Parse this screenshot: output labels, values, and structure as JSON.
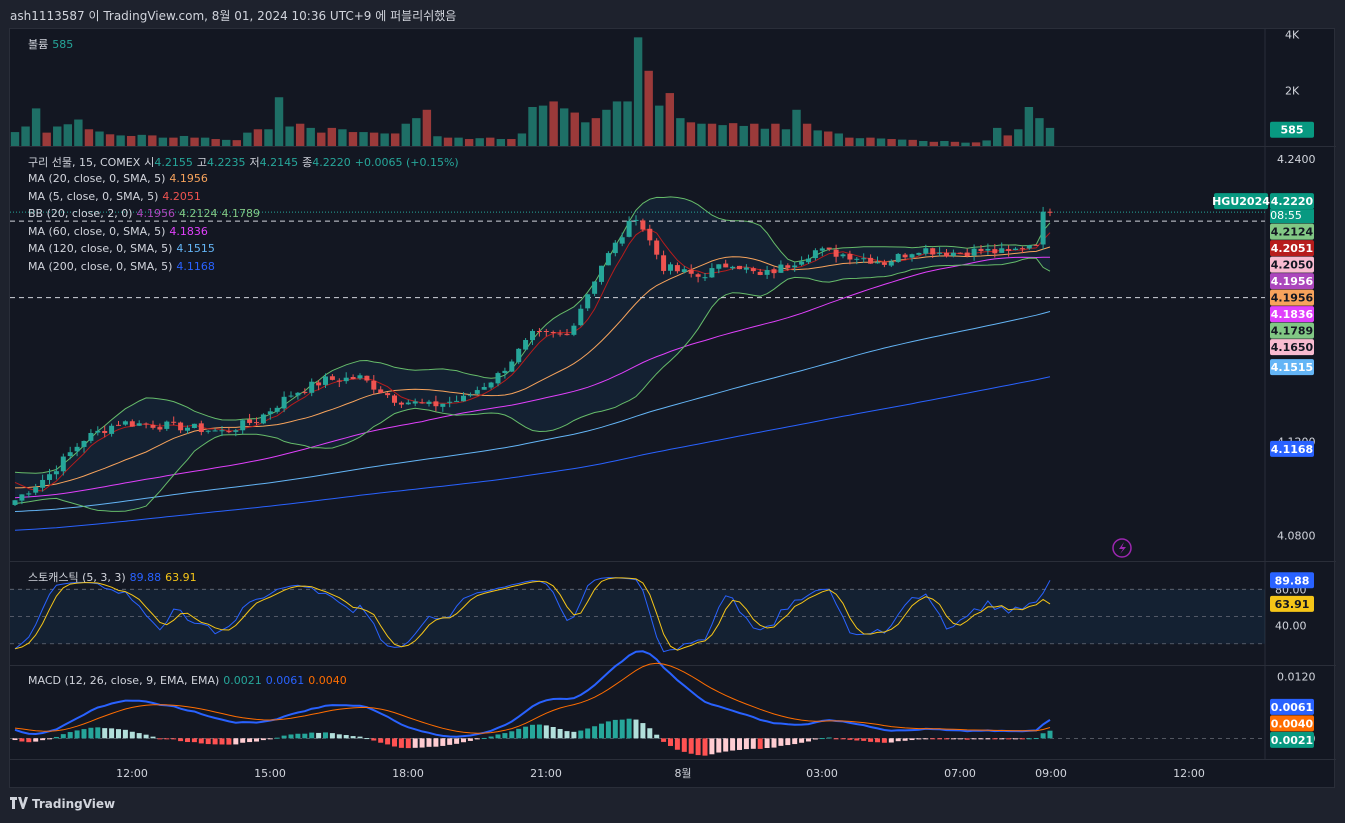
{
  "header": {
    "text": "ash1113587 이 TradingView.com, 8월 01, 2024 10:36 UTC+9 에 퍼블리쉬했음"
  },
  "footer": {
    "brand": "TradingView"
  },
  "colors": {
    "bg": "#131722",
    "up": "#26a69a",
    "down": "#ef5350",
    "ma20": "#f7a35c",
    "ma5": "#ef5350",
    "bbmid": "#ab47bc",
    "bbup": "#66bb6a",
    "bbdn": "#66bb6a",
    "ma60": "#e040fb",
    "ma120": "#64b5f6",
    "ma200": "#2962ff",
    "stochK": "#2962ff",
    "stochD": "#f5c518",
    "macd": "#2962ff",
    "signal": "#ff6d00"
  },
  "legends": {
    "volume": {
      "label": "볼륨",
      "value": "585"
    },
    "main": {
      "title": "구리 선물, 15, COMEX",
      "o_label": "시",
      "o": "4.2155",
      "h_label": "고",
      "h": "4.2235",
      "l_label": "저",
      "l": "4.2145",
      "c_label": "종",
      "c": "4.2220",
      "chg": "+0.0065 (+0.15%)"
    },
    "ma20": {
      "label": "MA (20, close, 0, SMA, 5)",
      "value": "4.1956"
    },
    "ma5": {
      "label": "MA (5, close, 0, SMA, 5)",
      "value": "4.2051"
    },
    "bb": {
      "label": "BB (20, close, 2, 0)",
      "v1": "4.1956",
      "v2": "4.2124",
      "v3": "4.1789"
    },
    "ma60": {
      "label": "MA (60, close, 0, SMA, 5)",
      "value": "4.1836"
    },
    "ma120": {
      "label": "MA (120, close, 0, SMA, 5)",
      "value": "4.1515"
    },
    "ma200": {
      "label": "MA (200, close, 0, SMA, 5)",
      "value": "4.1168"
    },
    "stoch": {
      "label": "스토캐스틱 (5, 3, 3)",
      "k": "89.88",
      "d": "63.91"
    },
    "macd": {
      "label": "MACD (12, 26, close, 9, EMA, EMA)",
      "hist": "0.0021",
      "macd": "0.0061",
      "signal": "0.0040"
    }
  },
  "chart_data": {
    "type": "candlestick",
    "symbol": "HGU2024",
    "x_ticks": [
      "12:00",
      "15:00",
      "18:00",
      "21:00",
      "8월",
      "03:00",
      "07:00",
      "09:00",
      "12:00"
    ],
    "price_axis": {
      "ticks": [
        "4.2400",
        "4.1200",
        "4.0800"
      ],
      "ylim": [
        4.07,
        4.245
      ]
    },
    "volume_axis": {
      "ticks": [
        "4K",
        "2K"
      ],
      "ylim": [
        0,
        4200
      ]
    },
    "stoch_axis": {
      "ticks": [
        "80.00",
        "40.00"
      ],
      "ylim": [
        0,
        110
      ]
    },
    "macd_axis": {
      "ticks": [
        "0.0120",
        "0.0000"
      ],
      "ylim": [
        -0.004,
        0.014
      ]
    },
    "countdown": "08:55",
    "hlines": [
      4.2135,
      4.181
    ],
    "badges": [
      {
        "text": "HGU2024",
        "color": "#089981",
        "price": 4.222
      },
      {
        "text": "4.2220",
        "color": "#089981",
        "price": 4.222
      },
      {
        "text": "4.2124",
        "color": "#81c784",
        "price": 4.2124
      },
      {
        "text": "4.2051",
        "color": "#b71c1c",
        "price": 4.2051
      },
      {
        "text": "4.2050",
        "color": "#f8bbd0",
        "price": 4.205
      },
      {
        "text": "4.1956",
        "color": "#ab47bc",
        "price": 4.1956
      },
      {
        "text": "4.1956",
        "color": "#f7a35c",
        "price": 4.1956
      },
      {
        "text": "4.1836",
        "color": "#e040fb",
        "price": 4.1836
      },
      {
        "text": "4.1789",
        "color": "#81c784",
        "price": 4.1789
      },
      {
        "text": "4.1650",
        "color": "#f8bbd0",
        "price": 4.165
      },
      {
        "text": "4.1515",
        "color": "#64b5f6",
        "price": 4.1515
      },
      {
        "text": "4.1168",
        "color": "#2962ff",
        "price": 4.1168
      },
      {
        "text": "585",
        "color": "#089981",
        "vol": 585
      },
      {
        "text": "89.88",
        "color": "#2962ff",
        "stoch": 89.88
      },
      {
        "text": "63.91",
        "color": "#f5c518",
        "stoch": 63.91
      },
      {
        "text": "0.0061",
        "color": "#2962ff",
        "macd": 0.0061
      },
      {
        "text": "0.0040",
        "color": "#ff6d00",
        "macd": 0.004
      },
      {
        "text": "0.0021",
        "color": "#089981",
        "macd": 0.0021
      }
    ],
    "keypoints": [
      [
        0,
        4.095
      ],
      [
        5,
        4.106
      ],
      [
        10,
        4.121
      ],
      [
        15,
        4.128
      ],
      [
        20,
        4.127
      ],
      [
        25,
        4.126
      ],
      [
        30,
        4.124
      ],
      [
        35,
        4.129
      ],
      [
        40,
        4.14
      ],
      [
        45,
        4.146
      ],
      [
        50,
        4.147
      ],
      [
        55,
        4.138
      ],
      [
        60,
        4.135
      ],
      [
        65,
        4.138
      ],
      [
        70,
        4.148
      ],
      [
        75,
        4.165
      ],
      [
        80,
        4.165
      ],
      [
        85,
        4.195
      ],
      [
        90,
        4.216
      ],
      [
        94,
        4.194
      ],
      [
        99,
        4.19
      ],
      [
        104,
        4.196
      ],
      [
        108,
        4.19
      ],
      [
        112,
        4.195
      ],
      [
        116,
        4.201
      ],
      [
        121,
        4.199
      ],
      [
        126,
        4.196
      ],
      [
        131,
        4.202
      ],
      [
        135,
        4.2
      ],
      [
        140,
        4.201
      ],
      [
        144,
        4.2
      ],
      [
        148,
        4.205
      ],
      [
        149,
        4.216
      ],
      [
        151,
        4.222
      ]
    ],
    "volume": [
      500,
      700,
      1350,
      480,
      700,
      780,
      950,
      600,
      520,
      420,
      380,
      360,
      400,
      380,
      300,
      300,
      360,
      300,
      300,
      250,
      220,
      210,
      480,
      600,
      600,
      1750,
      700,
      800,
      650,
      480,
      650,
      600,
      500,
      500,
      480,
      450,
      450,
      800,
      1000,
      1300,
      350,
      300,
      300,
      250,
      280,
      300,
      250,
      250,
      450,
      1400,
      1450,
      1600,
      1350,
      1200,
      850,
      1000,
      1300,
      1600,
      1600,
      3900,
      2700,
      1450,
      1900,
      1000,
      850,
      800,
      800,
      750,
      820,
      720,
      800,
      620,
      800,
      600,
      1300,
      800,
      560,
      520,
      450,
      300,
      280,
      300,
      270,
      250,
      230,
      220,
      180,
      150,
      180,
      150,
      120,
      130,
      200,
      650,
      380,
      600,
      1400,
      1000,
      650
    ],
    "volume_up": [
      1,
      1,
      1,
      0,
      1,
      1,
      1,
      0,
      1,
      0,
      1,
      0,
      1,
      0,
      1,
      0,
      1,
      0,
      1,
      0,
      1,
      0,
      1,
      0,
      1,
      1,
      1,
      0,
      1,
      0,
      0,
      1,
      0,
      1,
      0,
      1,
      0,
      1,
      1,
      0,
      1,
      0,
      1,
      0,
      1,
      0,
      1,
      0,
      1,
      1,
      1,
      0,
      1,
      0,
      1,
      0,
      1,
      1,
      1,
      1,
      0,
      1,
      0,
      1,
      0,
      1,
      0,
      1,
      0,
      1,
      0,
      1,
      0,
      1,
      1,
      0,
      1,
      0,
      1,
      0,
      1,
      0,
      1,
      0,
      1,
      0,
      1,
      0,
      1,
      0,
      1,
      0,
      1,
      1,
      0,
      1,
      1,
      1,
      1
    ]
  }
}
